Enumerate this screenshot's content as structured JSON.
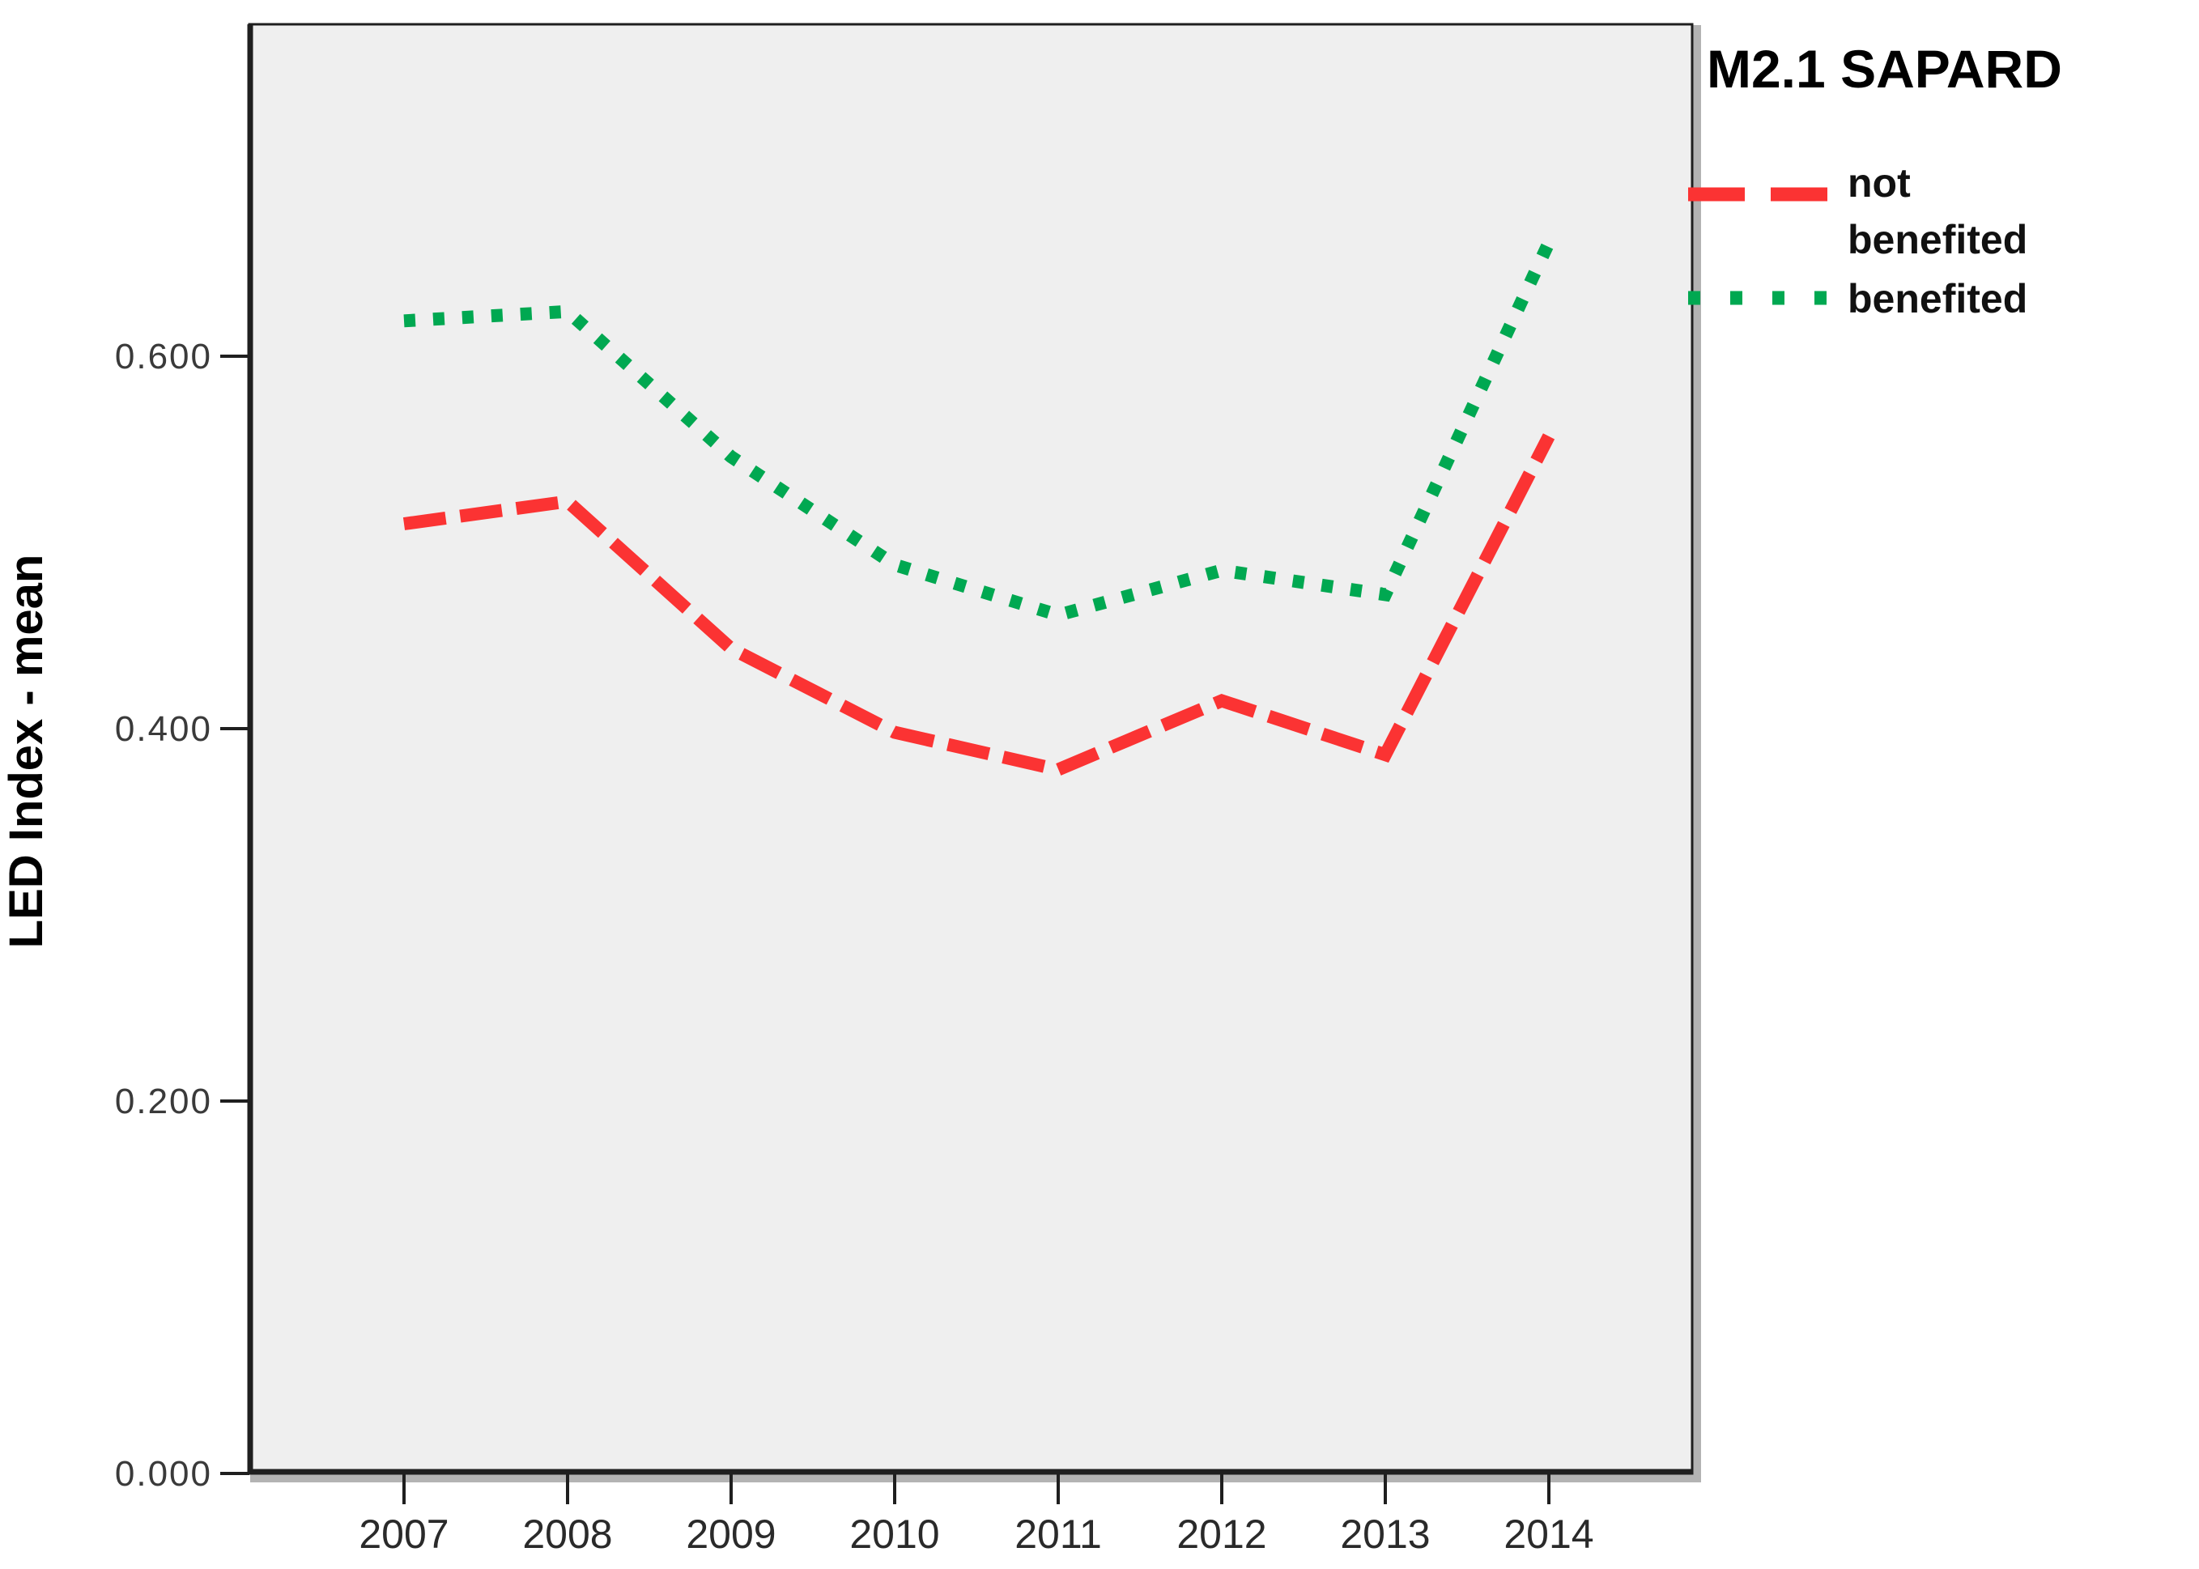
{
  "figure": {
    "background": "#ffffff",
    "plot_background": "#efefef",
    "frame_color": "#1f1f1f",
    "shadow_color": "#b3b3b3"
  },
  "chart_data": {
    "type": "line",
    "title": "",
    "xlabel": "",
    "ylabel": "LED Index - mean",
    "categories": [
      "2007",
      "2008",
      "2009",
      "2010",
      "2011",
      "2012",
      "2013",
      "2014"
    ],
    "series": [
      {
        "name": "not benefited",
        "color": "#fb3333",
        "line_style": "dashed",
        "values": [
          0.51,
          0.522,
          0.443,
          0.398,
          0.378,
          0.415,
          0.386,
          0.557
        ]
      },
      {
        "name": "benefited",
        "color": "#00a851",
        "line_style": "dotted",
        "values": [
          0.619,
          0.624,
          0.546,
          0.488,
          0.461,
          0.485,
          0.472,
          0.661
        ]
      }
    ],
    "ylim": [
      0.0,
      0.778
    ],
    "yticks": [
      {
        "value": 0.0,
        "label": "0.000"
      },
      {
        "value": 0.2,
        "label": "0.200"
      },
      {
        "value": 0.4,
        "label": "0.400"
      },
      {
        "value": 0.6,
        "label": "0.600"
      }
    ],
    "grid": false,
    "legend_position": "right"
  },
  "legend": {
    "title": "M2.1 SAPARD",
    "items": [
      {
        "series_index": 0,
        "label_lines": [
          "not",
          "benefited"
        ]
      },
      {
        "series_index": 1,
        "label_lines": [
          "benefited"
        ]
      }
    ]
  }
}
